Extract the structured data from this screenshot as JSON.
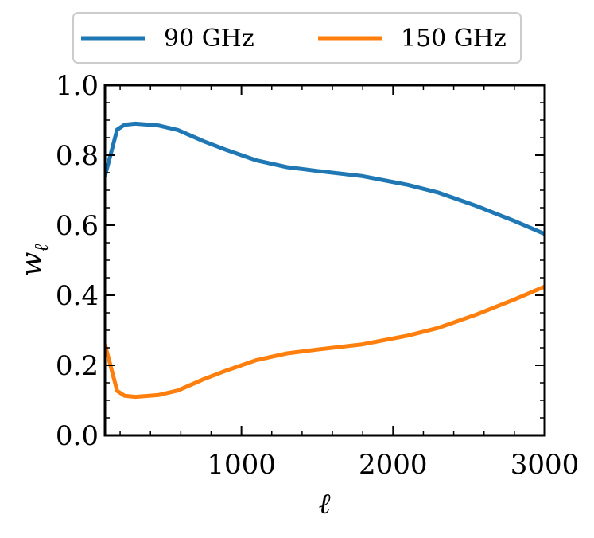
{
  "chart_data": {
    "type": "line",
    "title": "",
    "xlabel": "ℓ",
    "ylabel": "w",
    "ylabel_subscript": "ℓ",
    "xlim": [
      100,
      3000
    ],
    "ylim": [
      0.0,
      1.0
    ],
    "xticks": [
      1000,
      2000,
      3000
    ],
    "xtick_labels": [
      "1000",
      "2000",
      "3000"
    ],
    "yticks": [
      0.0,
      0.2,
      0.4,
      0.6,
      0.8,
      1.0
    ],
    "ytick_labels": [
      "0.0",
      "0.2",
      "0.4",
      "0.6",
      "0.8",
      "1.0"
    ],
    "grid": false,
    "legend_position": "top-center",
    "series": [
      {
        "name": "90 GHz",
        "color": "#1f77b4",
        "x": [
          100,
          180,
          230,
          300,
          450,
          580,
          750,
          900,
          1100,
          1300,
          1500,
          1800,
          2100,
          2300,
          2550,
          2800,
          3000
        ],
        "y": [
          0.74,
          0.873,
          0.887,
          0.89,
          0.885,
          0.872,
          0.84,
          0.815,
          0.785,
          0.766,
          0.755,
          0.74,
          0.715,
          0.693,
          0.655,
          0.612,
          0.575
        ]
      },
      {
        "name": "150 GHz",
        "color": "#ff7f0e",
        "x": [
          100,
          180,
          230,
          300,
          450,
          580,
          750,
          900,
          1100,
          1300,
          1500,
          1800,
          2100,
          2300,
          2550,
          2800,
          3000
        ],
        "y": [
          0.26,
          0.127,
          0.113,
          0.11,
          0.115,
          0.128,
          0.16,
          0.185,
          0.215,
          0.234,
          0.245,
          0.26,
          0.285,
          0.307,
          0.345,
          0.388,
          0.425
        ]
      }
    ]
  }
}
